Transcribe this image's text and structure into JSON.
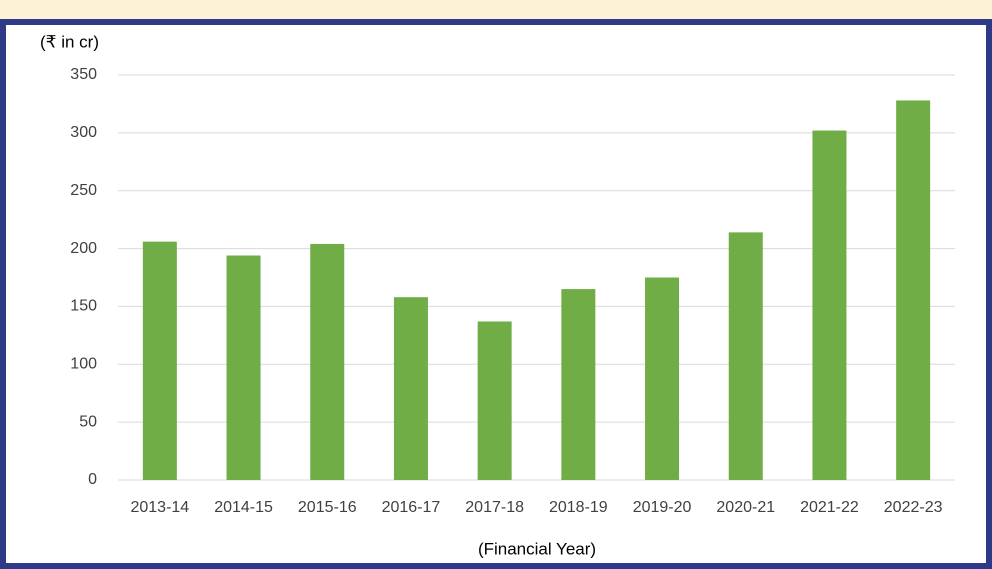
{
  "chart_data": {
    "type": "bar",
    "unit_label": "(₹ in cr)",
    "x_label": "(Financial Year)",
    "categories": [
      "2013-14",
      "2014-15",
      "2015-16",
      "2016-17",
      "2017-18",
      "2018-19",
      "2019-20",
      "2020-21",
      "2021-22",
      "2022-23"
    ],
    "values": [
      206,
      194,
      204,
      158,
      137,
      165,
      175,
      214,
      302,
      328
    ],
    "color": "#70ad47",
    "ylim": [
      0,
      350
    ],
    "yticks": [
      0,
      50,
      100,
      150,
      200,
      250,
      300,
      350
    ],
    "grid": true
  }
}
